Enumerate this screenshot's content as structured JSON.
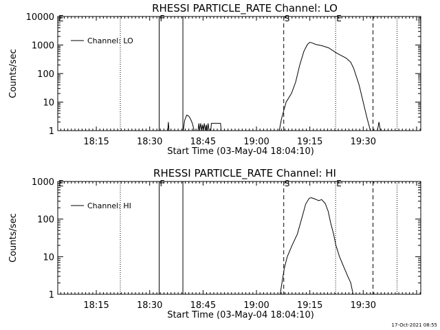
{
  "footer": {
    "timestamp": "17-Oct-2021 08:55"
  },
  "chart_data": [
    {
      "type": "line",
      "title": "RHESSI PARTICLE_RATE Channel: LO",
      "xlabel": "Start Time (03-May-04 18:04:10)",
      "ylabel": "Counts/sec",
      "yscale": "log",
      "ylim": [
        1,
        10000
      ],
      "xlim": [
        "18:04:10",
        "19:46:10"
      ],
      "x_ticks": [
        "18:15",
        "18:30",
        "18:45",
        "19:00",
        "19:15",
        "19:30"
      ],
      "y_ticks": [
        "1",
        "10",
        "100",
        "1000",
        "10000"
      ],
      "legend": {
        "entries": [
          "Channel: LO"
        ],
        "placement": "top-left"
      },
      "markers": [
        {
          "label": "E",
          "time": "18:04:10",
          "style": "solid"
        },
        {
          "label": "",
          "time": "18:21:45",
          "style": "dotted"
        },
        {
          "label": "F",
          "time": "18:32:40",
          "style": "solid"
        },
        {
          "label": "",
          "time": "18:39:20",
          "style": "solid"
        },
        {
          "label": "S",
          "time": "19:07:40",
          "style": "dashed"
        },
        {
          "label": "E",
          "time": "19:22:15",
          "style": "dotted"
        },
        {
          "label": "",
          "time": "19:32:45",
          "style": "dashed"
        },
        {
          "label": "",
          "time": "19:39:30",
          "style": "dotted"
        }
      ],
      "series": [
        {
          "name": "Channel: LO",
          "segments": [
            [
              [
                "18:35:05",
                1
              ],
              [
                "18:35:15",
                2
              ],
              [
                "18:35:25",
                1
              ]
            ],
            [
              [
                "18:39:25",
                1
              ],
              [
                "18:39:50",
                2.3
              ],
              [
                "18:40:25",
                3.5
              ],
              [
                "18:41:00",
                3.2
              ],
              [
                "18:41:30",
                2.5
              ],
              [
                "18:42:00",
                1.8
              ],
              [
                "18:42:30",
                1
              ]
            ],
            [
              [
                "18:43:35",
                1
              ],
              [
                "18:43:50",
                1.8
              ],
              [
                "18:44:00",
                1
              ],
              [
                "18:44:20",
                1.8
              ],
              [
                "18:44:35",
                1
              ],
              [
                "18:44:50",
                1.6
              ],
              [
                "18:45:05",
                1
              ],
              [
                "18:45:20",
                1.8
              ],
              [
                "18:45:40",
                1
              ],
              [
                "18:45:55",
                1.6
              ],
              [
                "18:46:10",
                1
              ],
              [
                "18:46:25",
                1.8
              ],
              [
                "18:46:40",
                1
              ]
            ],
            [
              [
                "18:47:10",
                1
              ],
              [
                "18:47:20",
                1.8
              ],
              [
                "18:49:55",
                1.8
              ],
              [
                "18:50:05",
                1
              ]
            ],
            [
              [
                "19:06:25",
                1
              ],
              [
                "19:07:00",
                2.5
              ],
              [
                "19:07:40",
                5
              ],
              [
                "19:08:20",
                10
              ],
              [
                "19:09:50",
                20
              ],
              [
                "19:11:00",
                50
              ],
              [
                "19:12:10",
                200
              ],
              [
                "19:13:20",
                600
              ],
              [
                "19:14:20",
                1050
              ],
              [
                "19:15:00",
                1250
              ],
              [
                "19:15:30",
                1200
              ],
              [
                "19:16:40",
                1050
              ],
              [
                "19:18:20",
                950
              ],
              [
                "19:20:15",
                800
              ],
              [
                "19:22:15",
                550
              ],
              [
                "19:23:30",
                450
              ],
              [
                "19:25:10",
                350
              ],
              [
                "19:26:30",
                250
              ],
              [
                "19:27:20",
                150
              ],
              [
                "19:28:50",
                40
              ],
              [
                "19:30:00",
                10
              ],
              [
                "19:31:00",
                3
              ],
              [
                "19:32:00",
                1
              ]
            ],
            [
              [
                "19:34:00",
                1
              ],
              [
                "19:34:25",
                2
              ],
              [
                "19:34:50",
                1
              ]
            ]
          ]
        }
      ]
    },
    {
      "type": "line",
      "title": "RHESSI PARTICLE_RATE Channel: HI",
      "xlabel": "Start Time (03-May-04 18:04:10)",
      "ylabel": "Counts/sec",
      "yscale": "log",
      "ylim": [
        1,
        1000
      ],
      "xlim": [
        "18:04:10",
        "19:46:10"
      ],
      "x_ticks": [
        "18:15",
        "18:30",
        "18:45",
        "19:00",
        "19:15",
        "19:30"
      ],
      "y_ticks": [
        "1",
        "10",
        "100",
        "1000"
      ],
      "legend": {
        "entries": [
          "Channel: HI"
        ],
        "placement": "top-left"
      },
      "markers": [
        {
          "label": "E",
          "time": "18:04:10",
          "style": "solid"
        },
        {
          "label": "",
          "time": "18:21:45",
          "style": "dotted"
        },
        {
          "label": "F",
          "time": "18:32:40",
          "style": "solid"
        },
        {
          "label": "",
          "time": "18:39:20",
          "style": "solid"
        },
        {
          "label": "S",
          "time": "19:07:40",
          "style": "dashed"
        },
        {
          "label": "E",
          "time": "19:22:15",
          "style": "dotted"
        },
        {
          "label": "",
          "time": "19:32:45",
          "style": "dashed"
        },
        {
          "label": "",
          "time": "19:39:30",
          "style": "dotted"
        }
      ],
      "series": [
        {
          "name": "Channel: HI",
          "segments": [
            [
              [
                "19:06:40",
                1
              ],
              [
                "19:07:10",
                2
              ],
              [
                "19:07:50",
                5
              ],
              [
                "19:08:40",
                10
              ],
              [
                "19:10:00",
                20
              ],
              [
                "19:11:30",
                40
              ],
              [
                "19:12:40",
                100
              ],
              [
                "19:13:50",
                250
              ],
              [
                "19:14:50",
                360
              ],
              [
                "19:15:30",
                370
              ],
              [
                "19:16:30",
                340
              ],
              [
                "19:17:30",
                310
              ],
              [
                "19:18:20",
                330
              ],
              [
                "19:19:20",
                260
              ],
              [
                "19:20:10",
                160
              ],
              [
                "19:20:50",
                80
              ],
              [
                "19:21:40",
                40
              ],
              [
                "19:22:20",
                20
              ],
              [
                "19:23:20",
                10
              ],
              [
                "19:24:40",
                5
              ],
              [
                "19:25:40",
                3
              ],
              [
                "19:26:30",
                2
              ],
              [
                "19:27:10",
                1
              ]
            ]
          ]
        }
      ]
    }
  ]
}
